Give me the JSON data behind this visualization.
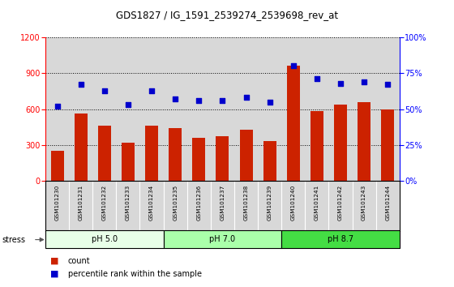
{
  "title": "GDS1827 / IG_1591_2539274_2539698_rev_at",
  "categories": [
    "GSM101230",
    "GSM101231",
    "GSM101232",
    "GSM101233",
    "GSM101234",
    "GSM101235",
    "GSM101236",
    "GSM101237",
    "GSM101238",
    "GSM101239",
    "GSM101240",
    "GSM101241",
    "GSM101242",
    "GSM101243",
    "GSM101244"
  ],
  "counts": [
    250,
    565,
    460,
    320,
    460,
    440,
    360,
    370,
    430,
    330,
    960,
    580,
    640,
    660,
    600
  ],
  "percentiles": [
    52,
    67,
    63,
    53,
    63,
    57,
    56,
    56,
    58,
    55,
    80,
    71,
    68,
    69,
    67
  ],
  "ylim_left": [
    0,
    1200
  ],
  "ylim_right": [
    0,
    100
  ],
  "yticks_left": [
    0,
    300,
    600,
    900,
    1200
  ],
  "yticks_right": [
    0,
    25,
    50,
    75,
    100
  ],
  "groups": [
    {
      "label": "pH 5.0",
      "start": 0,
      "end": 5,
      "color": "#e8ffe8"
    },
    {
      "label": "pH 7.0",
      "start": 5,
      "end": 10,
      "color": "#aaffaa"
    },
    {
      "label": "pH 8.7",
      "start": 10,
      "end": 15,
      "color": "#44dd44"
    }
  ],
  "bar_color": "#cc2200",
  "dot_color": "#0000cc",
  "grid_color": "#000000",
  "bg_color": "#d8d8d8",
  "plot_bg": "#ffffff",
  "stress_label": "stress",
  "legend_count": "count",
  "legend_percentile": "percentile rank within the sample",
  "title_fontsize": 8.5,
  "tick_fontsize": 7,
  "label_fontsize": 6
}
